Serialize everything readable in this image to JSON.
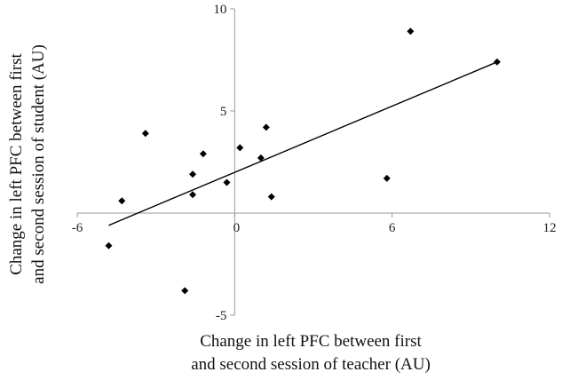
{
  "chart_data": {
    "type": "scatter",
    "title": "",
    "xlabel": [
      "Change in left PFC between first",
      "and second session of teacher (AU)"
    ],
    "ylabel": [
      "Change in left PFC between first",
      "and second session of student (AU)"
    ],
    "xlim": [
      -6,
      12
    ],
    "ylim": [
      -5,
      10
    ],
    "xticks": [
      -6,
      0,
      6,
      12
    ],
    "yticks": [
      -5,
      0,
      5,
      10
    ],
    "tick_labels": {
      "x": [
        "-6",
        "0",
        "6",
        "12"
      ],
      "y": [
        "-5",
        "0",
        "5",
        "10"
      ]
    },
    "grid": false,
    "points": [
      {
        "x": -4.8,
        "y": -1.6
      },
      {
        "x": -4.3,
        "y": 0.6
      },
      {
        "x": -3.4,
        "y": 3.9
      },
      {
        "x": -1.6,
        "y": 1.9
      },
      {
        "x": -1.6,
        "y": 0.9
      },
      {
        "x": -1.2,
        "y": 2.9
      },
      {
        "x": -1.9,
        "y": -3.8
      },
      {
        "x": -0.3,
        "y": 1.5
      },
      {
        "x": 0.2,
        "y": 3.2
      },
      {
        "x": 1.0,
        "y": 2.7
      },
      {
        "x": 1.2,
        "y": 4.2
      },
      {
        "x": 1.4,
        "y": 0.8
      },
      {
        "x": 5.8,
        "y": 1.7
      },
      {
        "x": 6.7,
        "y": 8.9
      },
      {
        "x": 10.0,
        "y": 7.4
      }
    ],
    "trendline": {
      "x": [
        -4.8,
        10.0
      ],
      "y": [
        -0.6,
        7.4
      ]
    }
  }
}
